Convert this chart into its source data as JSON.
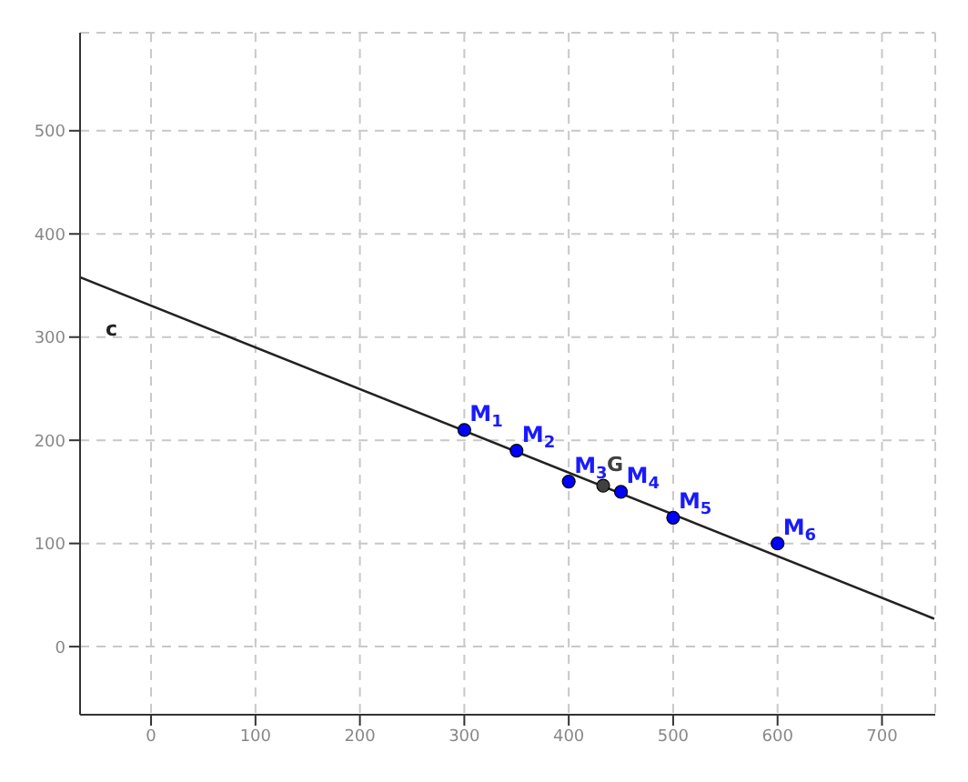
{
  "chart_data": {
    "type": "scatter",
    "xlim": [
      -68,
      751
    ],
    "ylim": [
      -66,
      595
    ],
    "xticks": [
      0,
      100,
      200,
      300,
      400,
      500,
      600,
      700
    ],
    "yticks": [
      0,
      100,
      200,
      300,
      400,
      500
    ],
    "grid": true,
    "series": [
      {
        "color": "#0000ff",
        "marker": "circle",
        "x": [
          300,
          350,
          400,
          450,
          500,
          600
        ],
        "values": [
          210,
          190,
          160,
          150,
          125,
          100
        ]
      },
      {
        "name": "G",
        "color": "#404040",
        "marker": "circle",
        "x": [
          433
        ],
        "values": [
          156
        ]
      },
      {
        "type": "line",
        "name": "c",
        "color": "#222222",
        "x": [
          -68,
          750
        ],
        "values": [
          358,
          27
        ]
      }
    ],
    "annotations": [
      {
        "text": "M$_{1}$",
        "x": 300,
        "y": 210
      },
      {
        "text": "M$_{2}$",
        "x": 350,
        "y": 190
      },
      {
        "text": "M$_{3}$",
        "x": 400,
        "y": 160
      },
      {
        "text": "M$_{4}$",
        "x": 450,
        "y": 150
      },
      {
        "text": "M$_{5}$",
        "x": 500,
        "y": 125
      },
      {
        "text": "M$_{6}$",
        "x": 600,
        "y": 100
      }
    ]
  }
}
